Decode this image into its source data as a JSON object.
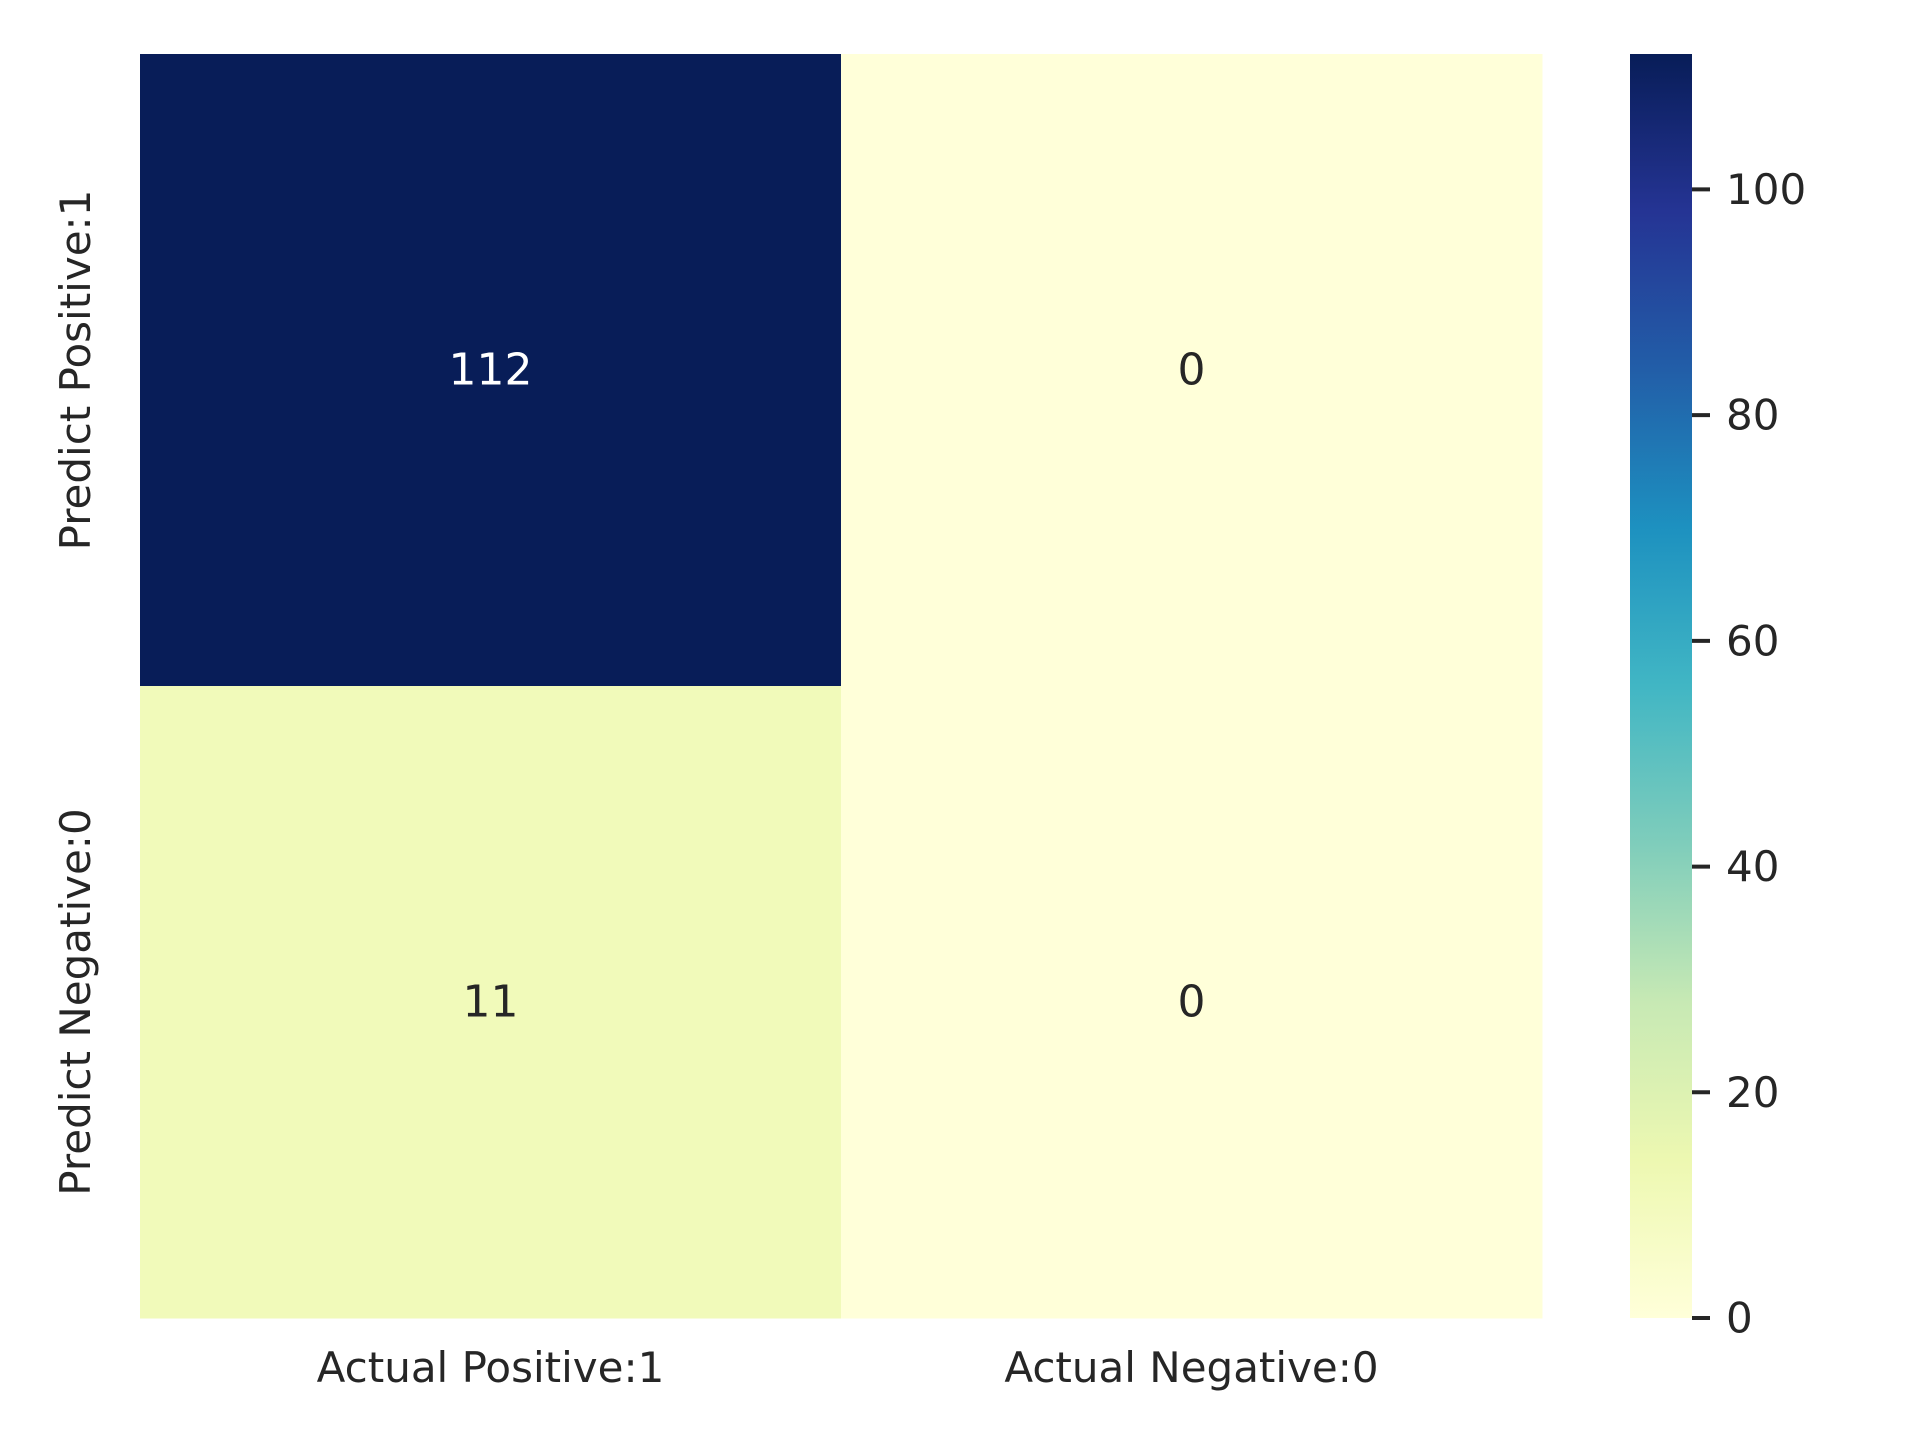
{
  "chart_data": {
    "type": "heatmap",
    "title": "",
    "xlabel": "",
    "ylabel": "",
    "x_categories": [
      "Actual Positive:1",
      "Actual Negative:0"
    ],
    "y_categories": [
      "Predict Positive:1",
      "Predict Negative:0"
    ],
    "values": [
      [
        112,
        0
      ],
      [
        11,
        0
      ]
    ],
    "value_labels": [
      [
        "112",
        "0"
      ],
      [
        "11",
        "0"
      ]
    ],
    "colormap": "YlGnBu",
    "colorbar": {
      "min": 0,
      "max": 112,
      "ticks": [
        0,
        20,
        40,
        60,
        80,
        100
      ],
      "tick_labels": [
        "0",
        "20",
        "40",
        "60",
        "80",
        "100"
      ],
      "placement": "right"
    },
    "grid": false,
    "legend": "none"
  }
}
